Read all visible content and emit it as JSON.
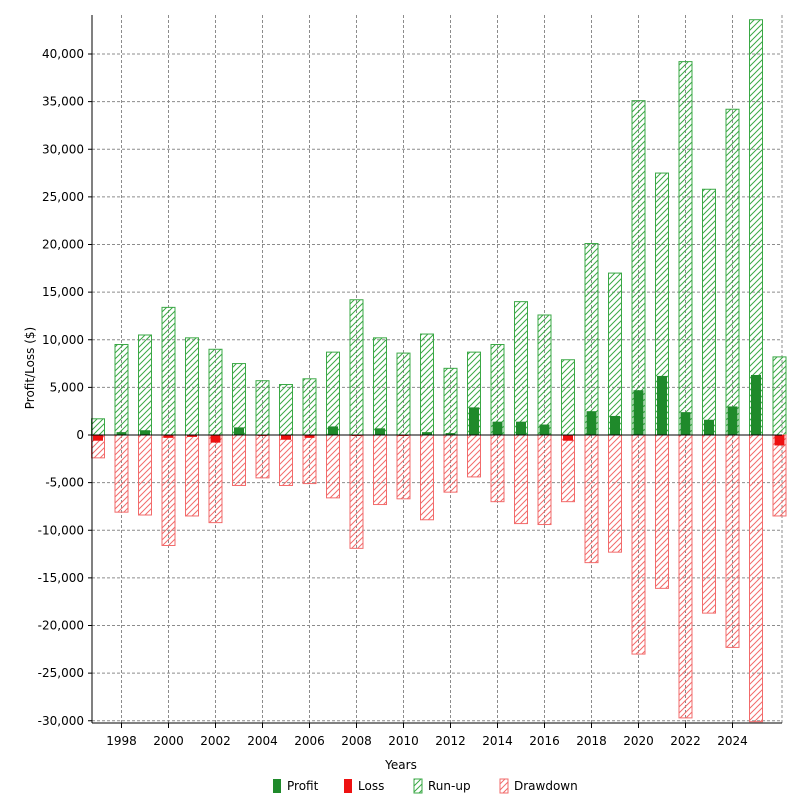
{
  "chart_data": {
    "type": "bar",
    "xlabel": "Years",
    "ylabel": "Profit/Loss ($)",
    "ylim": [
      -30000,
      43000
    ],
    "grid": true,
    "legend_placement": "bottom",
    "x_tick_labels": [
      "1998",
      "2000",
      "2002",
      "2004",
      "2006",
      "2008",
      "2010",
      "2012",
      "2014",
      "2016",
      "2018",
      "2020",
      "2022",
      "2024"
    ],
    "y_tick_values": [
      -30000,
      -25000,
      -20000,
      -15000,
      -10000,
      -5000,
      0,
      5000,
      10000,
      15000,
      20000,
      25000,
      30000,
      35000,
      40000
    ],
    "y_tick_labels": [
      "-30,000",
      "-25,000",
      "-20,000",
      "-15,000",
      "-10,000",
      "-5,000",
      "0",
      "5,000",
      "10,000",
      "15,000",
      "20,000",
      "25,000",
      "30,000",
      "35,000",
      "40,000"
    ],
    "categories": [
      1997,
      1998,
      1999,
      2000,
      2001,
      2002,
      2003,
      2004,
      2005,
      2006,
      2007,
      2008,
      2009,
      2010,
      2011,
      2012,
      2013,
      2014,
      2015,
      2016,
      2017,
      2018,
      2019,
      2020,
      2021,
      2022,
      2023,
      2024,
      2025,
      2026
    ],
    "colors": {
      "profit": "#1f8a2b",
      "loss": "#ee1111",
      "runup": "#3aa845",
      "drawdown": "#f26b6b",
      "grid": "#8c8c8c",
      "axis": "#000000"
    },
    "series": [
      {
        "name": "Profit",
        "kind": "solid",
        "values": [
          0,
          300,
          500,
          0,
          0,
          0,
          800,
          0,
          0,
          0,
          900,
          0,
          700,
          0,
          300,
          200,
          2900,
          1400,
          1400,
          1100,
          0,
          2500,
          2000,
          4700,
          6200,
          2400,
          1600,
          3000,
          6300,
          0
        ]
      },
      {
        "name": "Loss",
        "kind": "solid",
        "values": [
          -600,
          0,
          0,
          -300,
          -200,
          -800,
          0,
          -100,
          -500,
          -300,
          0,
          -100,
          0,
          -100,
          0,
          0,
          0,
          0,
          0,
          0,
          -600,
          0,
          0,
          0,
          0,
          0,
          0,
          0,
          0,
          -1100
        ]
      },
      {
        "name": "Run-up",
        "kind": "hatched",
        "values": [
          1700,
          9500,
          10500,
          13400,
          10200,
          9000,
          7500,
          5700,
          5300,
          5900,
          8700,
          14200,
          10200,
          8600,
          10600,
          7000,
          8700,
          9500,
          14000,
          12600,
          7900,
          20100,
          17000,
          35100,
          27500,
          39200,
          25800,
          34200,
          43600,
          8200
        ]
      },
      {
        "name": "Drawdown",
        "kind": "hatched",
        "values": [
          -2400,
          -8100,
          -8400,
          -11600,
          -8500,
          -9200,
          -5300,
          -4500,
          -5300,
          -5100,
          -6600,
          -11900,
          -7300,
          -6700,
          -8900,
          -6000,
          -4400,
          -7000,
          -9300,
          -9400,
          -7000,
          -13400,
          -12300,
          -23000,
          -16100,
          -29700,
          -18700,
          -22300,
          -30100,
          -8500
        ]
      }
    ]
  }
}
